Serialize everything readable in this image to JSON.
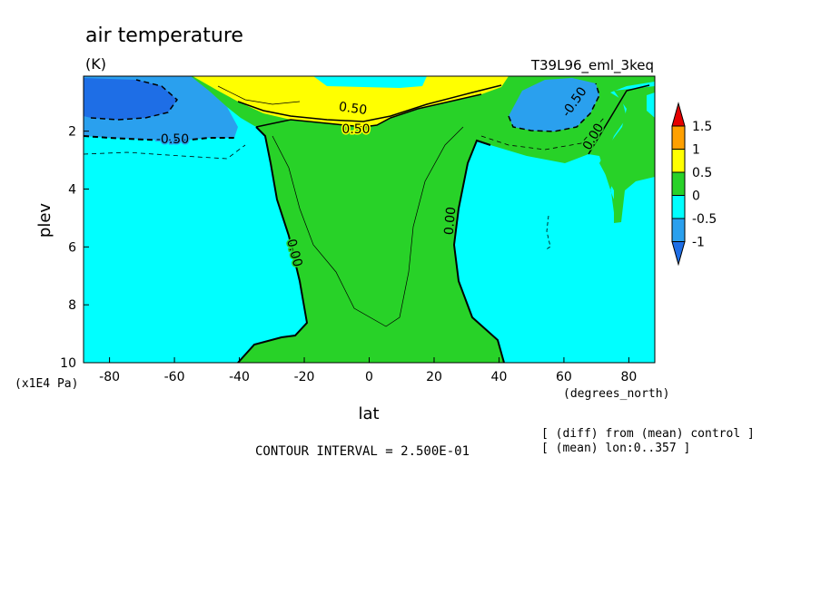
{
  "chart_data": {
    "type": "heatmap",
    "title": "air temperature",
    "units": "(K)",
    "dataset": "T39L96_eml_3keq",
    "xlabel": "lat",
    "x_units": "(degrees_north)",
    "ylabel": "plev",
    "y_units": "(x1E4 Pa)",
    "xlim": [
      -88,
      88
    ],
    "ylim": [
      0.1,
      10
    ],
    "y_inverted": true,
    "x_ticks": [
      -80,
      -60,
      -40,
      -20,
      0,
      20,
      40,
      60,
      80
    ],
    "y_ticks": [
      2,
      4,
      6,
      8,
      10
    ],
    "x_tick_labels": [
      "-80",
      "-60",
      "-40",
      "-20",
      "0",
      "20",
      "40",
      "60",
      "80"
    ],
    "y_tick_labels": [
      "2",
      "4",
      "6",
      "8",
      "10"
    ],
    "contour_interval_text": "CONTOUR INTERVAL = 2.500E-01",
    "notes": [
      "[ (diff) from (mean) control ]",
      "[ (mean) lon:0..357 ]"
    ],
    "contour_labels": [
      "-0.50",
      "0.50",
      "0.50",
      "0.00",
      "0.00",
      "-0.50",
      "0.00"
    ],
    "colorbar": {
      "boundaries": [
        -1,
        -0.5,
        0,
        0.5,
        1,
        1.5
      ],
      "labels": [
        "1.5",
        "1",
        "0.5",
        "0",
        "-0.5",
        "-1"
      ],
      "colors": {
        "below_-1": "#1e6ee6",
        "-1_to_-0.5": "#2aa0ee",
        "-0.5_to_0": "#00ffff",
        "0_to_0.5": "#28d228",
        "0.5_to_1": "#ffff00",
        "1_to_1.5": "#ffa000",
        "above_1.5": "#e60000"
      }
    },
    "regions": [
      {
        "range": "-0.5 to 0",
        "description_lat": [
          -88,
          -25
        ],
        "description_plev": [
          2.5,
          10
        ]
      },
      {
        "range": "-0.5 to 0",
        "description_lat": [
          35,
          88
        ],
        "description_plev": [
          2.5,
          10
        ]
      },
      {
        "range": "0 to 0.5",
        "description_lat": [
          -25,
          35
        ],
        "description_plev": [
          2,
          10
        ]
      },
      {
        "range": "0.5 to 1",
        "description_lat": [
          -35,
          40
        ],
        "description_plev": [
          0.1,
          1.8
        ]
      },
      {
        "range": "-1 to -0.5",
        "description_lat": [
          -88,
          -50
        ],
        "description_plev": [
          0.1,
          2.2
        ]
      },
      {
        "range": "below -1",
        "description_lat": [
          -85,
          -62
        ],
        "description_plev": [
          0.2,
          1.5
        ]
      },
      {
        "range": "-1 to -0.5",
        "description_lat": [
          45,
          70
        ],
        "description_plev": [
          0.3,
          2
        ]
      }
    ]
  }
}
